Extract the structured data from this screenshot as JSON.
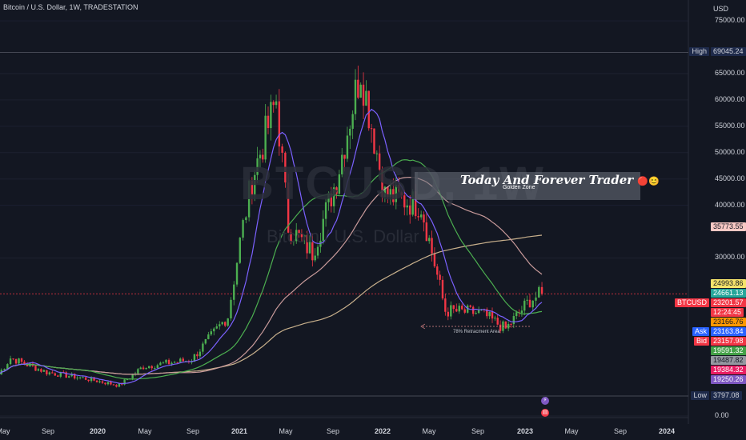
{
  "legend": {
    "title": "Bitcoin / U.S. Dollar, 1W, TRADESTATION"
  },
  "watermark": {
    "symbol": "BTCUSD, 1W",
    "name": "Bitcoin / U.S. Dollar"
  },
  "annotation": {
    "title": "Today And Forever Trader",
    "title_emojis": "🔴😊",
    "subtitle": "Golden Zone"
  },
  "fib_label": "78% Retracment Area",
  "axis": {
    "currency": "USD"
  },
  "y_labels": [
    {
      "text": "75000.00",
      "value": 75000
    },
    {
      "text": "65000.00",
      "value": 65000
    },
    {
      "text": "60000.00",
      "value": 60000
    },
    {
      "text": "55000.00",
      "value": 55000
    },
    {
      "text": "50000.00",
      "value": 50000
    },
    {
      "text": "45000.00",
      "value": 45000
    },
    {
      "text": "40000.00",
      "value": 40000
    },
    {
      "text": "30000.00",
      "value": 30000
    },
    {
      "text": "0.00",
      "value": 0
    }
  ],
  "x_labels": [
    {
      "text": "May",
      "bold": false
    },
    {
      "text": "Sep",
      "bold": false
    },
    {
      "text": "2020",
      "bold": true
    },
    {
      "text": "May",
      "bold": false
    },
    {
      "text": "Sep",
      "bold": false
    },
    {
      "text": "2021",
      "bold": true
    },
    {
      "text": "May",
      "bold": false
    },
    {
      "text": "Sep",
      "bold": false
    },
    {
      "text": "2022",
      "bold": true
    },
    {
      "text": "May",
      "bold": false
    },
    {
      "text": "Sep",
      "bold": false
    },
    {
      "text": "2023",
      "bold": true
    },
    {
      "text": "May",
      "bold": false
    },
    {
      "text": "Sep",
      "bold": false
    },
    {
      "text": "2024",
      "bold": true
    }
  ],
  "price_tags": [
    {
      "label": "High",
      "value": "69045.24",
      "price": 69045.24,
      "bg": "#1e2a4a",
      "fg": "#d1d4dc"
    },
    {
      "label": "",
      "value": "35773.55",
      "price": 35773.55,
      "bg": "#f8c8c4",
      "fg": "#131722"
    },
    {
      "label": "",
      "value": "24993.86",
      "price": 24993.86,
      "bg": "#f5e36b",
      "fg": "#131722"
    },
    {
      "label": "",
      "value": "24661.13",
      "price": 24661.13,
      "bg": "#26a69a",
      "fg": "#ffffff"
    },
    {
      "label": "BTCUSD",
      "value": "23201.57",
      "price": 23201.57,
      "bg": "#f23645",
      "fg": "#ffffff"
    },
    {
      "label": "",
      "value": "12:24:45",
      "price": null,
      "bg": "#f23645",
      "fg": "#ffffff"
    },
    {
      "label": "",
      "value": "23166.76",
      "price": 23166.76,
      "bg": "#ff9800",
      "fg": "#131722"
    },
    {
      "label": "Ask",
      "value": "23163.84",
      "price": 23163.84,
      "bg": "#2962ff",
      "fg": "#ffffff"
    },
    {
      "label": "Bid",
      "value": "23157.98",
      "price": 23157.98,
      "bg": "#f23645",
      "fg": "#ffffff"
    },
    {
      "label": "",
      "value": "19591.32",
      "price": 19591.32,
      "bg": "#43a047",
      "fg": "#ffffff"
    },
    {
      "label": "",
      "value": "19487.82",
      "price": 19487.82,
      "bg": "#9598a1",
      "fg": "#131722"
    },
    {
      "label": "",
      "value": "19384.32",
      "price": 19384.32,
      "bg": "#e91e63",
      "fg": "#ffffff"
    },
    {
      "label": "",
      "value": "19250.26",
      "price": 19250.26,
      "bg": "#7e57c2",
      "fg": "#ffffff"
    },
    {
      "label": "Low",
      "value": "3797.08",
      "price": 3797.08,
      "bg": "#1e2a4a",
      "fg": "#d1d4dc"
    }
  ],
  "colors": {
    "background": "#131722",
    "up": "#4caf50",
    "down": "#f23645",
    "ma_fast": "#7b61ff",
    "ma_mid": "#4caf50",
    "ma_slow": "#c89a9a",
    "ma_long": "#c8b08c"
  },
  "chart_data": {
    "type": "candlestick",
    "symbol": "BTCUSD",
    "interval": "1W",
    "ylim": [
      0,
      80000
    ],
    "ohlc": [],
    "series": [
      {
        "name": "",
        "values": []
      }
    ],
    "anchors": [
      {
        "date": "2019-05",
        "close": 7900
      },
      {
        "date": "2019-06",
        "close": 11000
      },
      {
        "date": "2019-09",
        "close": 8300
      },
      {
        "date": "2019-12",
        "close": 7200
      },
      {
        "date": "2020-03",
        "close": 5800
      },
      {
        "date": "2020-05",
        "close": 9400
      },
      {
        "date": "2020-09",
        "close": 10700
      },
      {
        "date": "2020-12",
        "close": 19000
      },
      {
        "date": "2021-01",
        "close": 33000
      },
      {
        "date": "2021-02",
        "close": 45000
      },
      {
        "date": "2021-04",
        "close": 60000
      },
      {
        "date": "2021-05",
        "close": 36000
      },
      {
        "date": "2021-07",
        "close": 31000
      },
      {
        "date": "2021-09",
        "close": 45000
      },
      {
        "date": "2021-11",
        "close": 66000
      },
      {
        "date": "2022-01",
        "close": 42000
      },
      {
        "date": "2022-04",
        "close": 40000
      },
      {
        "date": "2022-06",
        "close": 20000
      },
      {
        "date": "2022-09",
        "close": 19500
      },
      {
        "date": "2022-11",
        "close": 16500
      },
      {
        "date": "2023-01",
        "close": 22000
      },
      {
        "date": "2023-02",
        "close": 23200
      }
    ]
  }
}
